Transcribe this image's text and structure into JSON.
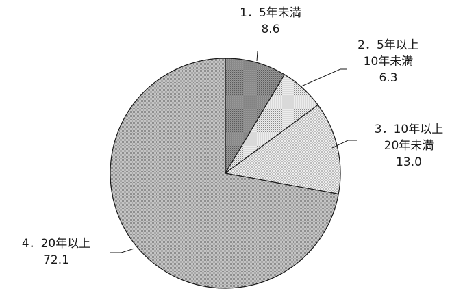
{
  "chart_data": {
    "type": "pie",
    "start": "top",
    "direction": "clockwise",
    "slices": [
      {
        "label_lines": [
          "1．5年未満"
        ],
        "value": 8.6,
        "value_text": "8.6",
        "fill": "#8c8c8c",
        "pattern": "dots-dense"
      },
      {
        "label_lines": [
          "2．5年以上",
          "10年未満"
        ],
        "value": 6.3,
        "value_text": "6.3",
        "fill": "#e2e2e2",
        "pattern": "stipple-light"
      },
      {
        "label_lines": [
          "3．10年以上",
          "20年未満"
        ],
        "value": 13.0,
        "value_text": "13.0",
        "fill": "#eeeeee",
        "pattern": "crosshatch"
      },
      {
        "label_lines": [
          "4．20年以上"
        ],
        "value": 72.1,
        "value_text": "72.1",
        "fill": "#b5b5b5",
        "pattern": "fine-grain"
      }
    ],
    "colors": {
      "edge": "#1a1a1a",
      "text": "#1a1a1a"
    }
  }
}
